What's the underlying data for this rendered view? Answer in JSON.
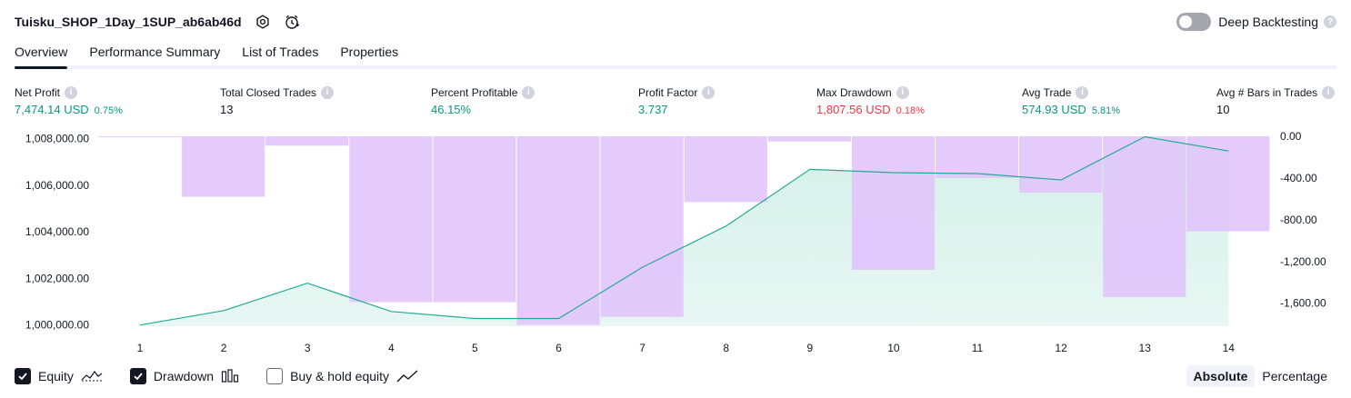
{
  "header": {
    "strategy_name": "Tuisku_SHOP_1Day_1SUP_ab6ab46d",
    "deep_backtesting_label": "Deep Backtesting"
  },
  "tabs": [
    {
      "label": "Overview",
      "active": true
    },
    {
      "label": "Performance Summary",
      "active": false
    },
    {
      "label": "List of Trades",
      "active": false
    },
    {
      "label": "Properties",
      "active": false
    }
  ],
  "metrics": {
    "net_profit": {
      "label": "Net Profit",
      "value": "7,474.14 USD",
      "pct": "0.75%"
    },
    "total_closed_trades": {
      "label": "Total Closed Trades",
      "value": "13"
    },
    "percent_profitable": {
      "label": "Percent Profitable",
      "value": "46.15%"
    },
    "profit_factor": {
      "label": "Profit Factor",
      "value": "3.737"
    },
    "max_drawdown": {
      "label": "Max Drawdown",
      "value": "1,807.56 USD",
      "pct": "0.18%"
    },
    "avg_trade": {
      "label": "Avg Trade",
      "value": "574.93 USD",
      "pct": "5.81%"
    },
    "avg_bars": {
      "label": "Avg # Bars in Trades",
      "value": "10"
    }
  },
  "colors": {
    "positive": "#089981",
    "negative": "#f23645",
    "equity_line": "#22ab94",
    "equity_fill": "#d4f0e8",
    "drawdown_bar": "#e1c5fc"
  },
  "chart_data": {
    "type": "area",
    "x": [
      1,
      2,
      3,
      4,
      5,
      6,
      7,
      8,
      9,
      10,
      11,
      12,
      13,
      14
    ],
    "series": [
      {
        "axis": "left",
        "values": [
          1000000,
          1000620,
          1001800,
          1000580,
          1000280,
          1000280,
          1002480,
          1004250,
          1006680,
          1006540,
          1006500,
          1006230,
          1008080,
          1007470
        ]
      },
      {
        "axis": "right",
        "type": "bar",
        "values": [
          -5,
          -580,
          -90,
          -1590,
          -1590,
          -1808,
          -1730,
          -630,
          -50,
          -1280,
          -400,
          -540,
          -1540,
          -910
        ]
      }
    ],
    "left_axis": {
      "ticks": [
        "1,000,000.00",
        "1,002,000.00",
        "1,004,000.00",
        "1,006,000.00",
        "1,008,000.00"
      ],
      "ylim": [
        999950,
        1008100
      ]
    },
    "right_axis": {
      "ticks": [
        "0.00",
        "-400.00",
        "-800.00",
        "-1,200.00",
        "-1,600.00"
      ],
      "ylim": [
        -1820,
        0
      ]
    },
    "x_ticks": [
      "1",
      "2",
      "3",
      "4",
      "5",
      "6",
      "7",
      "8",
      "9",
      "10",
      "11",
      "12",
      "13",
      "14"
    ]
  },
  "legend": {
    "equity": {
      "label": "Equity",
      "checked": true
    },
    "drawdown": {
      "label": "Drawdown",
      "checked": true
    },
    "buy_hold": {
      "label": "Buy & hold equity",
      "checked": false
    }
  },
  "scale": {
    "absolute": "Absolute",
    "percentage": "Percentage",
    "active": "absolute"
  }
}
